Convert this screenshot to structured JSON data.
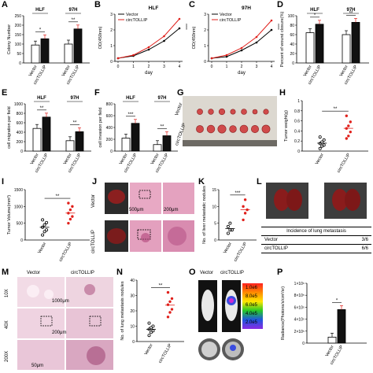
{
  "panel_labels": [
    "A",
    "B",
    "C",
    "D",
    "E",
    "F",
    "G",
    "H",
    "I",
    "J",
    "K",
    "L",
    "M",
    "N",
    "O",
    "P"
  ],
  "groups": [
    "Vector",
    "circTOLLIP"
  ],
  "cell_lines": [
    "HLF",
    "97H"
  ],
  "colors": {
    "vector": "#000000",
    "circ": "#e0201b",
    "bar_vector_fill": "#ffffff",
    "bar_circ_fill": "#111111"
  },
  "chart_data": [
    {
      "id": "A",
      "type": "bar",
      "ylabel": "Colony Number",
      "ylim": [
        0,
        250
      ],
      "yticks": [
        0,
        50,
        100,
        150,
        200,
        250
      ],
      "groups": [
        "HLF",
        "97H"
      ],
      "series": [
        {
          "name": "Vector",
          "values": [
            95,
            100
          ]
        },
        {
          "name": "circTOLLIP",
          "values": [
            128,
            180
          ]
        }
      ],
      "significance": [
        "*",
        "**"
      ]
    },
    {
      "id": "B",
      "type": "line",
      "title": "HLF",
      "ylabel": "OD(450nm)",
      "xlabel": "day",
      "x": [
        0,
        1,
        2,
        3,
        4
      ],
      "ylim": [
        0,
        3
      ],
      "yticks": [
        0,
        1,
        2,
        3
      ],
      "series": [
        {
          "name": "Vector",
          "values": [
            0.2,
            0.35,
            0.75,
            1.3,
            2.1
          ]
        },
        {
          "name": "circTOLLIP",
          "values": [
            0.2,
            0.4,
            0.9,
            1.6,
            2.7
          ]
        }
      ],
      "significance": "****"
    },
    {
      "id": "C",
      "type": "line",
      "title": "97H",
      "ylabel": "OD(450nm)",
      "xlabel": "day",
      "x": [
        0,
        1,
        2,
        3,
        4
      ],
      "ylim": [
        0,
        3
      ],
      "yticks": [
        0,
        1,
        2,
        3
      ],
      "series": [
        {
          "name": "Vector",
          "values": [
            0.2,
            0.3,
            0.7,
            1.2,
            2.0
          ]
        },
        {
          "name": "circTOLLIP",
          "values": [
            0.2,
            0.4,
            0.85,
            1.55,
            2.6
          ]
        }
      ],
      "significance": "****"
    },
    {
      "id": "D",
      "type": "bar",
      "ylabel": "Percent of wound closure(%)",
      "ylim": [
        0,
        100
      ],
      "yticks": [
        0,
        20,
        40,
        60,
        80,
        100
      ],
      "groups": [
        "HLF",
        "97H"
      ],
      "series": [
        {
          "name": "Vector",
          "values": [
            64,
            60
          ]
        },
        {
          "name": "circTOLLIP",
          "values": [
            82,
            86
          ]
        }
      ],
      "significance": [
        "*",
        "**"
      ]
    },
    {
      "id": "E",
      "type": "bar",
      "ylabel": "cell migration per field",
      "ylim": [
        0,
        1000
      ],
      "yticks": [
        0,
        200,
        400,
        600,
        800,
        1000
      ],
      "groups": [
        "HLF",
        "97H"
      ],
      "series": [
        {
          "name": "Vector",
          "values": [
            480,
            220
          ]
        },
        {
          "name": "circTOLLIP",
          "values": [
            720,
            410
          ]
        }
      ],
      "significance": [
        "**",
        "**"
      ]
    },
    {
      "id": "F",
      "type": "bar",
      "ylabel": "cell invasion per field",
      "ylim": [
        0,
        800
      ],
      "yticks": [
        0,
        200,
        400,
        600,
        800
      ],
      "groups": [
        "HLF",
        "97H"
      ],
      "series": [
        {
          "name": "Vector",
          "values": [
            220,
            110
          ]
        },
        {
          "name": "circTOLLIP",
          "values": [
            470,
            260
          ]
        }
      ],
      "significance": [
        "***",
        "**"
      ]
    },
    {
      "id": "H",
      "type": "scatter",
      "ylabel": "Tumor weight(g)",
      "ylim": [
        0,
        1.0
      ],
      "yticks": [
        0,
        0.2,
        0.4,
        0.6,
        0.8,
        1.0
      ],
      "series": [
        {
          "name": "Vector",
          "values": [
            0.05,
            0.1,
            0.12,
            0.15,
            0.18,
            0.22,
            0.28
          ]
        },
        {
          "name": "circTOLLIP",
          "values": [
            0.25,
            0.3,
            0.38,
            0.45,
            0.5,
            0.58,
            0.7
          ]
        }
      ],
      "significance": "**"
    },
    {
      "id": "I",
      "type": "scatter",
      "ylabel": "Tumor Volume(mm³)",
      "ylim": [
        0,
        1500
      ],
      "yticks": [
        0,
        500,
        1000,
        1500
      ],
      "series": [
        {
          "name": "Vector",
          "values": [
            150,
            250,
            300,
            380,
            450,
            520,
            600
          ]
        },
        {
          "name": "circTOLLIP",
          "values": [
            500,
            620,
            700,
            800,
            900,
            1000,
            1100
          ]
        }
      ],
      "significance": "**"
    },
    {
      "id": "K",
      "type": "scatter",
      "ylabel": "No. of liver metastatic nodules",
      "ylim": [
        0,
        15
      ],
      "yticks": [
        0,
        5,
        10,
        15
      ],
      "series": [
        {
          "name": "Vector",
          "values": [
            2,
            3,
            3,
            4,
            5
          ]
        },
        {
          "name": "circTOLLIP",
          "values": [
            6,
            8,
            9,
            10,
            12
          ]
        }
      ],
      "significance": "***"
    },
    {
      "id": "N",
      "type": "scatter",
      "ylabel": "No. of lung metastasis nodules",
      "ylim": [
        0,
        40
      ],
      "yticks": [
        0,
        10,
        20,
        30,
        40
      ],
      "series": [
        {
          "name": "Vector",
          "values": [
            4,
            6,
            7,
            8,
            9,
            10,
            12
          ]
        },
        {
          "name": "circTOLLIP",
          "values": [
            16,
            19,
            21,
            24,
            26,
            28,
            32
          ]
        }
      ],
      "significance": "**"
    },
    {
      "id": "P",
      "type": "bar",
      "ylabel": "Radiance(Photons/s/cm²/sr)",
      "ylim": [
        0,
        1000000.0
      ],
      "yticks": [
        0,
        200000.0,
        400000.0,
        600000.0,
        800000.0,
        1000000.0
      ],
      "yticklabels": [
        "0",
        "2×10⁵",
        "4×10⁵",
        "6×10⁵",
        "8×10⁵",
        "1×10⁶"
      ],
      "groups": [
        "Radiance"
      ],
      "series": [
        {
          "name": "Vector",
          "values": [
            100000.0
          ]
        },
        {
          "name": "circTOLLIP",
          "values": [
            560000.0
          ]
        }
      ],
      "significance": [
        "*"
      ]
    }
  ],
  "table_L": {
    "header": "Incidence of lung metastasis",
    "rows": [
      [
        "Vector",
        "3/6"
      ],
      [
        "circTOLLIP",
        "6/6"
      ]
    ]
  },
  "J": {
    "scale_labels": [
      "500μm",
      "200μm"
    ],
    "row_labels": [
      "Vector",
      "circTOLLIP"
    ]
  },
  "M": {
    "col_labels": [
      "Vector",
      "circTOLLIP"
    ],
    "row_labels": [
      "10X",
      "40X",
      "200X"
    ],
    "scale_labels": [
      "1000μm",
      "200μm",
      "50μm"
    ]
  },
  "O": {
    "col_labels": [
      "Vector",
      "circTOLLIP"
    ],
    "colorbar_ticks": [
      "1.0e6",
      "8.0e5",
      "6.0e5",
      "4.0e5",
      "2.0e5"
    ]
  },
  "G": {
    "row_labels": [
      "Vector",
      "circTOLLIP"
    ]
  }
}
